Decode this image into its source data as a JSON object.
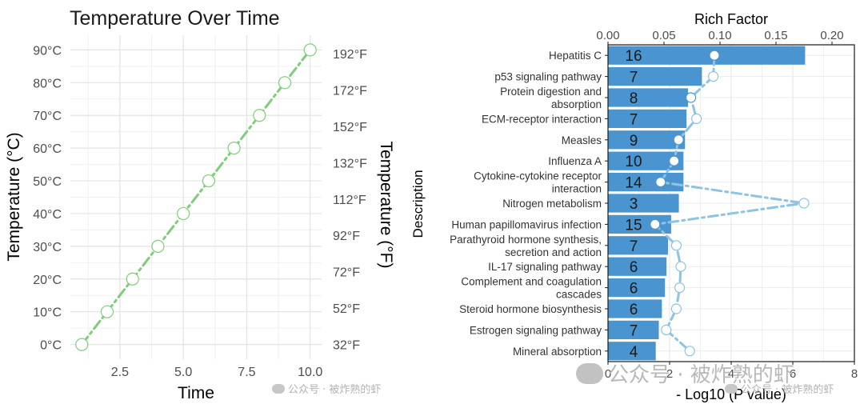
{
  "chart_data": [
    {
      "type": "line",
      "title": "Temperature Over Time",
      "xlabel": "Time",
      "ylabel": "Temperature (°C)",
      "y2label": "Temperature (°F)",
      "x": [
        1,
        2,
        3,
        4,
        5,
        6,
        7,
        8,
        9,
        10
      ],
      "series": [
        {
          "values": [
            0,
            10,
            20,
            30,
            40,
            50,
            60,
            70,
            80,
            90
          ]
        }
      ],
      "xlim": [
        0.55,
        10.45
      ],
      "ylim": [
        -4.5,
        94.5
      ],
      "xticks": [
        "2.5",
        "5.0",
        "7.5",
        "10.0"
      ],
      "xtick_values": [
        2.5,
        5,
        7.5,
        10
      ],
      "yticks": [
        "0°C",
        "10°C",
        "20°C",
        "30°C",
        "40°C",
        "50°C",
        "60°C",
        "70°C",
        "80°C",
        "90°C"
      ],
      "ytick_values": [
        0,
        10,
        20,
        30,
        40,
        50,
        60,
        70,
        80,
        90
      ],
      "y2ticks": [
        "32°F",
        "52°F",
        "72°F",
        "92°F",
        "112°F",
        "132°F",
        "152°F",
        "172°F",
        "192°F"
      ],
      "y2tick_values": [
        0,
        11.11,
        22.22,
        33.33,
        44.44,
        55.56,
        66.67,
        77.78,
        88.89
      ],
      "line_color": "#7fcd7b",
      "line_style": "dash-dot",
      "marker": "open-circle",
      "grid": true,
      "watermark": "公众号 · 被炸熟的虾"
    },
    {
      "type": "bar",
      "orientation": "horizontal",
      "ylabel": "Description",
      "xlabel_bottom": "- Log10 (P value)",
      "xlabel_top": "Rich Factor",
      "categories": [
        "Hepatitis C",
        "p53 signaling pathway",
        "Protein digestion and\nabsorption",
        "ECM-receptor interaction",
        "Measles",
        "Influenza A",
        "Cytokine-cytokine receptor\ninteraction",
        "Nitrogen metabolism",
        "Human papillomavirus infection",
        "Parathyroid hormone synthesis,\nsecretion and action",
        "IL-17 signaling pathway",
        "Complement and coagulation\ncascades",
        "Steroid hormone biosynthesis",
        "Estrogen signaling pathway",
        "Mineral absorption"
      ],
      "bar_values": [
        6.4,
        3.05,
        2.6,
        2.55,
        2.5,
        2.45,
        2.45,
        2.3,
        2.05,
        1.95,
        1.9,
        1.85,
        1.75,
        1.65,
        1.55
      ],
      "bar_labels": [
        "16",
        "7",
        "8",
        "7",
        "9",
        "10",
        "14",
        "3",
        "15",
        "7",
        "6",
        "6",
        "6",
        "7",
        "4"
      ],
      "rich_factor": [
        0.095,
        0.094,
        0.074,
        0.079,
        0.063,
        0.059,
        0.047,
        0.175,
        0.042,
        0.061,
        0.065,
        0.064,
        0.061,
        0.052,
        0.073
      ],
      "highlight_points": [
        true,
        false,
        true,
        false,
        true,
        true,
        true,
        false,
        true,
        false,
        false,
        false,
        false,
        false,
        false
      ],
      "xlim_bottom": [
        0,
        8
      ],
      "xticks_bottom": [
        "0",
        "2",
        "4",
        "6",
        "8"
      ],
      "xtick_values_bottom": [
        0,
        2,
        4,
        6,
        8
      ],
      "xlim_top": [
        0,
        0.22
      ],
      "xticks_top": [
        "0.00",
        "0.05",
        "0.10",
        "0.15",
        "0.20"
      ],
      "xtick_values_top": [
        0,
        0.05,
        0.1,
        0.15,
        0.2
      ],
      "bar_color": "#4a95cf",
      "line_color": "#8dc3e3",
      "line_style": "dash-dot",
      "grid": true,
      "watermark_large": "公众号 · 被炸熟的虾",
      "watermark_small": "公众号 · 被炸熟的虾"
    }
  ]
}
